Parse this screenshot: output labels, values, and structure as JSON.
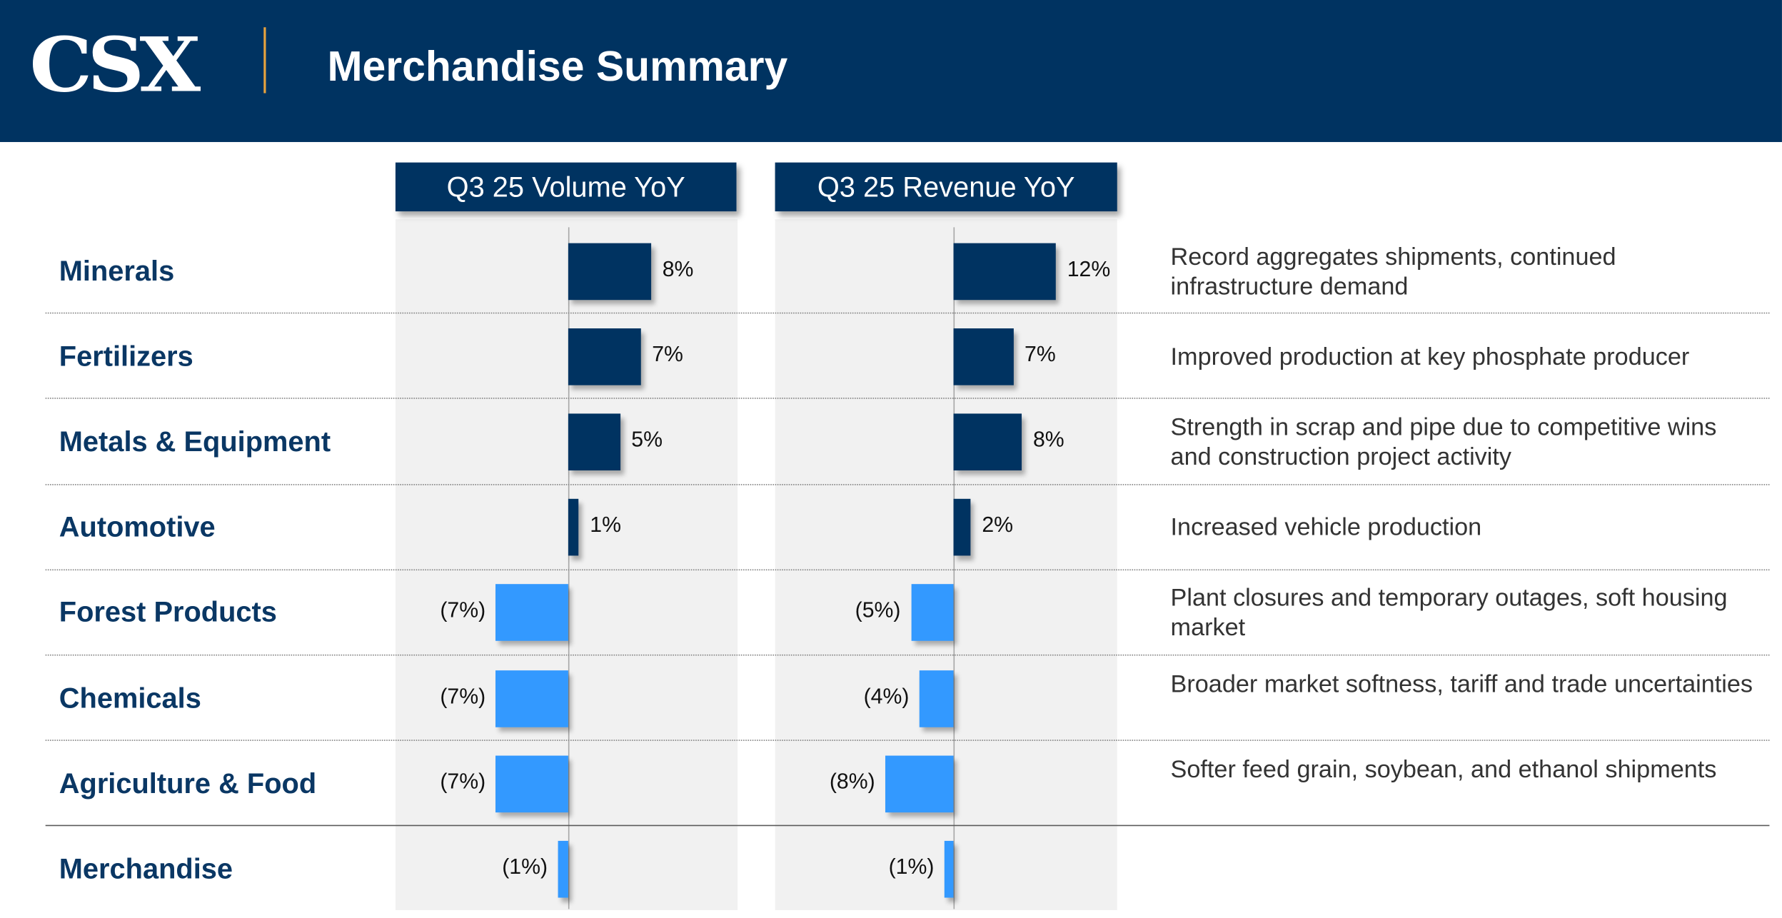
{
  "header": {
    "logo": "CSX",
    "title": "Merchandise Summary"
  },
  "colors": {
    "navy": "#003361",
    "positive": "#003361",
    "negative": "#3399ff"
  },
  "chart_data": [
    {
      "type": "bar",
      "title": "Q3 25 Volume YoY",
      "categories": [
        "Minerals",
        "Fertilizers",
        "Metals & Equipment",
        "Automotive",
        "Forest Products",
        "Chemicals",
        "Agriculture & Food",
        "Merchandise"
      ],
      "values": [
        8,
        7,
        5,
        1,
        -7,
        -7,
        -7,
        -1
      ],
      "labels": [
        "8%",
        "7%",
        "5%",
        "1%",
        "(7%)",
        "(7%)",
        "(7%)",
        "(1%)"
      ]
    },
    {
      "type": "bar",
      "title": "Q3 25 Revenue YoY",
      "categories": [
        "Minerals",
        "Fertilizers",
        "Metals & Equipment",
        "Automotive",
        "Forest Products",
        "Chemicals",
        "Agriculture & Food",
        "Merchandise"
      ],
      "values": [
        12,
        7,
        8,
        2,
        -5,
        -4,
        -8,
        -1
      ],
      "labels": [
        "12%",
        "7%",
        "8%",
        "2%",
        "(5%)",
        "(4%)",
        "(8%)",
        "(1%)"
      ]
    }
  ],
  "rows": [
    {
      "label": "Minerals",
      "note": "Record aggregates shipments, continued infrastructure demand"
    },
    {
      "label": "Fertilizers",
      "note": "Improved production at key phosphate producer"
    },
    {
      "label": "Metals & Equipment",
      "note": "Strength in scrap and pipe due to competitive wins and construction project activity"
    },
    {
      "label": "Automotive",
      "note": "Increased vehicle production"
    },
    {
      "label": "Forest Products",
      "note": "Plant closures and temporary outages, soft housing market"
    },
    {
      "label": "Chemicals",
      "note": "Broader market softness, tariff and trade uncertainties"
    },
    {
      "label": "Agriculture & Food",
      "note": "Softer feed grain, soybean, and ethanol shipments"
    },
    {
      "label": "Merchandise",
      "note": ""
    }
  ]
}
